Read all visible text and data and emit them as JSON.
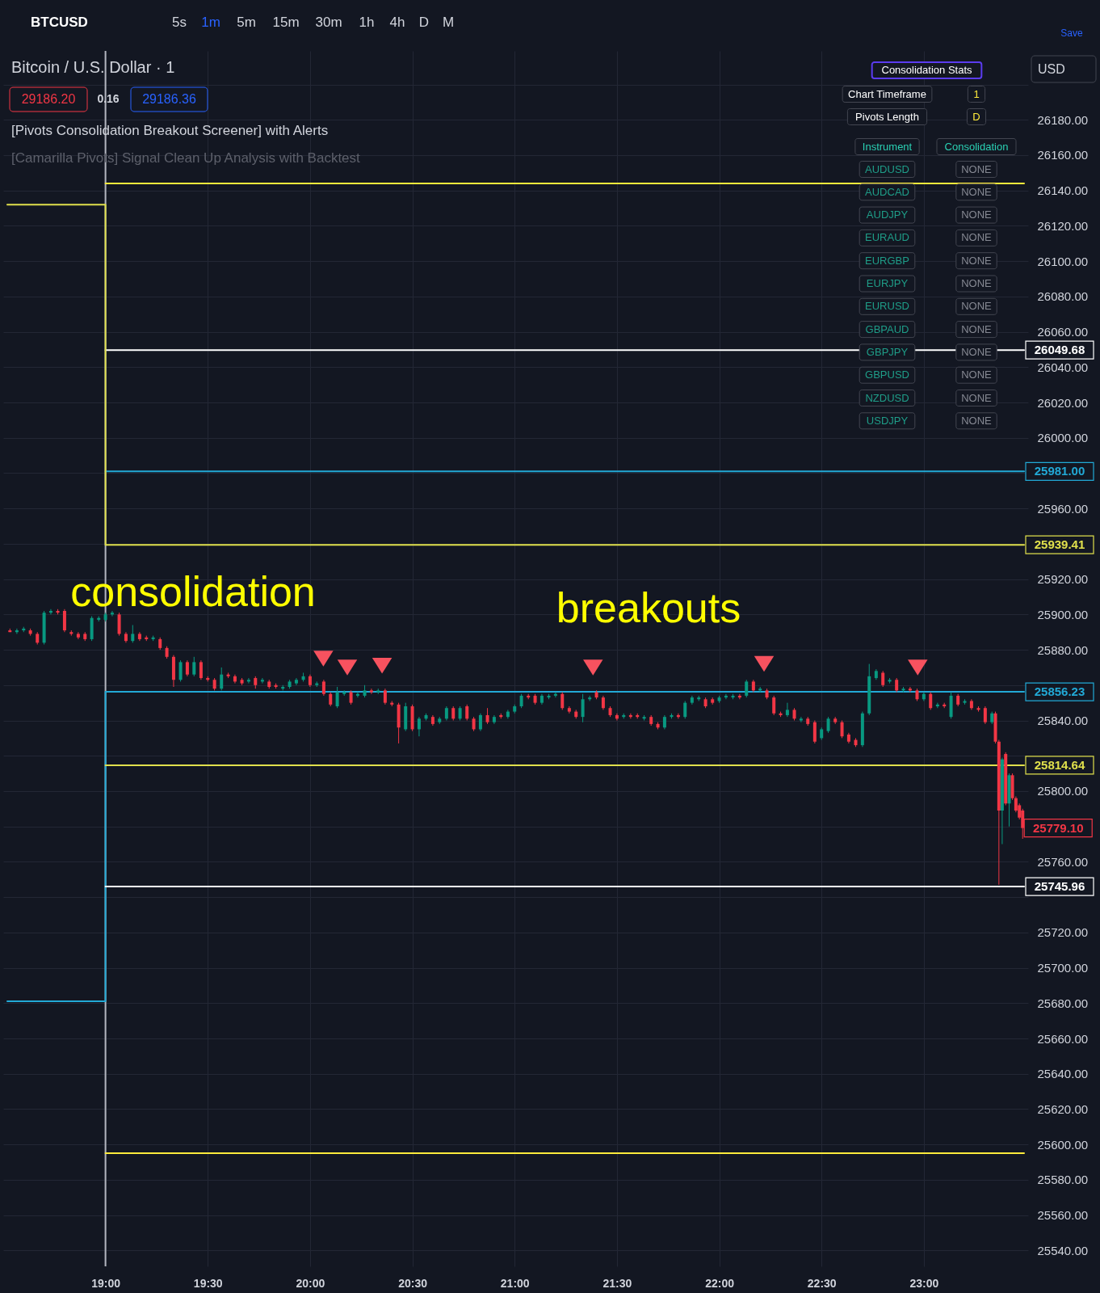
{
  "chart_data": {
    "type": "candlestick",
    "title": "Bitcoin / U.S. Dollar · 1",
    "x": [
      18.533,
      18.567,
      18.6,
      18.633,
      18.667,
      18.7,
      18.733,
      18.767,
      18.8,
      18.833,
      18.867,
      18.9,
      18.933,
      18.967,
      19,
      19.033,
      19.067,
      19.1,
      19.133,
      19.167,
      19.2,
      19.233,
      19.267,
      19.3,
      19.333,
      19.367,
      19.4,
      19.433,
      19.467,
      19.5,
      19.533,
      19.567,
      19.6,
      19.633,
      19.667,
      19.7,
      19.733,
      19.767,
      19.8,
      19.833,
      19.867,
      19.9,
      19.933,
      19.967,
      20,
      20.033,
      20.067,
      20.1,
      20.133,
      20.167,
      20.2,
      20.233,
      20.267,
      20.3,
      20.333,
      20.367,
      20.4,
      20.433,
      20.467,
      20.5,
      20.533,
      20.567,
      20.6,
      20.633,
      20.667,
      20.7,
      20.733,
      20.767,
      20.8,
      20.833,
      20.867,
      20.9,
      20.933,
      20.967,
      21,
      21.033,
      21.067,
      21.1,
      21.133,
      21.167,
      21.2,
      21.233,
      21.267,
      21.3,
      21.333,
      21.367,
      21.4,
      21.433,
      21.467,
      21.5,
      21.533,
      21.567,
      21.6,
      21.633,
      21.667,
      21.7,
      21.733,
      21.767,
      21.8,
      21.833,
      21.867,
      21.9,
      21.933,
      21.967,
      22,
      22.033,
      22.067,
      22.1,
      22.133,
      22.167,
      22.2,
      22.233,
      22.267,
      22.3,
      22.333,
      22.367,
      22.4,
      22.433,
      22.467,
      22.5,
      22.533,
      22.567,
      22.6,
      22.633,
      22.667,
      22.7,
      22.733,
      22.767,
      22.8,
      22.833,
      22.867,
      22.9,
      22.933,
      22.967,
      23,
      23.033,
      23.067,
      23.1,
      23.133,
      23.167,
      23.2,
      23.233,
      23.267,
      23.3,
      23.333,
      23.35,
      23.367,
      23.383,
      23.4,
      23.417,
      23.433,
      23.45,
      23.467,
      23.483
    ],
    "ohlc": [
      [
        25891,
        25892,
        25890,
        25890
      ],
      [
        25890,
        25892,
        25889,
        25891
      ],
      [
        25891,
        25893,
        25890,
        25892
      ],
      [
        25891,
        25892,
        25888,
        25889
      ],
      [
        25889,
        25890,
        25883,
        25884
      ],
      [
        25884,
        25902,
        25883,
        25901
      ],
      [
        25901,
        25903,
        25900,
        25902
      ],
      [
        25902,
        25903,
        25900,
        25901
      ],
      [
        25902,
        25903,
        25890,
        25891
      ],
      [
        25890,
        25891,
        25888,
        25889
      ],
      [
        25889,
        25890,
        25886,
        25887
      ],
      [
        25889,
        25890,
        25885,
        25886
      ],
      [
        25886,
        25899,
        25885,
        25898
      ],
      [
        25897,
        25899,
        25896,
        25898
      ],
      [
        25897,
        25901,
        25896,
        25900
      ],
      [
        25900,
        25902,
        25899,
        25901
      ],
      [
        25900,
        25901,
        25888,
        25889
      ],
      [
        25889,
        25890,
        25884,
        25885
      ],
      [
        25885,
        25894,
        25884,
        25889
      ],
      [
        25889,
        25890,
        25885,
        25886
      ],
      [
        25887,
        25888,
        25885,
        25886
      ],
      [
        25886,
        25888,
        25885,
        25887
      ],
      [
        25886,
        25887,
        25880,
        25881
      ],
      [
        25881,
        25882,
        25875,
        25876
      ],
      [
        25876,
        25877,
        25859,
        25863
      ],
      [
        25863,
        25874,
        25862,
        25873
      ],
      [
        25873,
        25874,
        25865,
        25866
      ],
      [
        25866,
        25876,
        25865,
        25873
      ],
      [
        25873,
        25874,
        25863,
        25864
      ],
      [
        25864,
        25865,
        25862,
        25863
      ],
      [
        25863,
        25864,
        25857,
        25858
      ],
      [
        25858,
        25870,
        25857,
        25866
      ],
      [
        25866,
        25867,
        25864,
        25865
      ],
      [
        25865,
        25866,
        25861,
        25862
      ],
      [
        25863,
        25864,
        25860,
        25861
      ],
      [
        25862,
        25864,
        25861,
        25863
      ],
      [
        25864,
        25865,
        25858,
        25860
      ],
      [
        25862,
        25864,
        25861,
        25863
      ],
      [
        25862,
        25863,
        25858,
        25859
      ],
      [
        25860,
        25861,
        25858,
        25859
      ],
      [
        25858,
        25860,
        25857,
        25859
      ],
      [
        25859,
        25863,
        25858,
        25862
      ],
      [
        25861,
        25864,
        25860,
        25863
      ],
      [
        25863,
        25867,
        25862,
        25865
      ],
      [
        25865,
        25866,
        25859,
        25860
      ],
      [
        25860,
        25862,
        25859,
        25861
      ],
      [
        25862,
        25863,
        25854,
        25855
      ],
      [
        25855,
        25856,
        25848,
        25849
      ],
      [
        25848,
        25859,
        25847,
        25856
      ],
      [
        25855,
        25857,
        25854,
        25856
      ],
      [
        25856,
        25857,
        25849,
        25850
      ],
      [
        25854,
        25856,
        25853,
        25855
      ],
      [
        25854,
        25860,
        25853,
        25857
      ],
      [
        25857,
        25858,
        25855,
        25856
      ],
      [
        25856,
        25858,
        25855,
        25857
      ],
      [
        25857,
        25858,
        25849,
        25850
      ],
      [
        25850,
        25851,
        25848,
        25849
      ],
      [
        25849,
        25850,
        25827,
        25836
      ],
      [
        25835,
        25850,
        25834,
        25848
      ],
      [
        25848,
        25849,
        25834,
        25835
      ],
      [
        25835,
        25842,
        25831,
        25841
      ],
      [
        25841,
        25844,
        25840,
        25843
      ],
      [
        25842,
        25843,
        25837,
        25838
      ],
      [
        25839,
        25842,
        25838,
        25841
      ],
      [
        25841,
        25848,
        25840,
        25847
      ],
      [
        25847,
        25848,
        25840,
        25841
      ],
      [
        25841,
        25848,
        25840,
        25847
      ],
      [
        25848,
        25849,
        25840,
        25841
      ],
      [
        25841,
        25842,
        25834,
        25835
      ],
      [
        25835,
        25844,
        25834,
        25843
      ],
      [
        25843,
        25847,
        25838,
        25839
      ],
      [
        25839,
        25843,
        25838,
        25842
      ],
      [
        25843,
        25844,
        25841,
        25842
      ],
      [
        25842,
        25846,
        25841,
        25845
      ],
      [
        25845,
        25849,
        25844,
        25848
      ],
      [
        25848,
        25855,
        25847,
        25854
      ],
      [
        25854,
        25855,
        25852,
        25853
      ],
      [
        25854,
        25855,
        25849,
        25850
      ],
      [
        25850,
        25855,
        25849,
        25854
      ],
      [
        25853,
        25855,
        25852,
        25854
      ],
      [
        25854,
        25856,
        25853,
        25855
      ],
      [
        25855,
        25856,
        25846,
        25847
      ],
      [
        25847,
        25848,
        25844,
        25845
      ],
      [
        25845,
        25846,
        25841,
        25842
      ],
      [
        25842,
        25855,
        25839,
        25852
      ],
      [
        25852,
        25854,
        25851,
        25853
      ],
      [
        25856,
        25857,
        25852,
        25853
      ],
      [
        25853,
        25854,
        25846,
        25847
      ],
      [
        25847,
        25848,
        25842,
        25843
      ],
      [
        25843,
        25844,
        25840,
        25841
      ],
      [
        25842,
        25844,
        25841,
        25843
      ],
      [
        25843,
        25844,
        25841,
        25842
      ],
      [
        25843,
        25844,
        25841,
        25842
      ],
      [
        25841,
        25843,
        25840,
        25842
      ],
      [
        25842,
        25843,
        25837,
        25838
      ],
      [
        25838,
        25839,
        25835,
        25836
      ],
      [
        25836,
        25843,
        25835,
        25842
      ],
      [
        25842,
        25844,
        25841,
        25843
      ],
      [
        25843,
        25844,
        25841,
        25842
      ],
      [
        25842,
        25851,
        25841,
        25850
      ],
      [
        25850,
        25854,
        25849,
        25853
      ],
      [
        25852,
        25854,
        25851,
        25853
      ],
      [
        25852,
        25853,
        25847,
        25848
      ],
      [
        25852,
        25853,
        25849,
        25850
      ],
      [
        25851,
        25854,
        25850,
        25853
      ],
      [
        25853,
        25855,
        25852,
        25854
      ],
      [
        25853,
        25855,
        25852,
        25854
      ],
      [
        25854,
        25855,
        25852,
        25853
      ],
      [
        25854,
        25863,
        25853,
        25862
      ],
      [
        25862,
        25863,
        25856,
        25857
      ],
      [
        25857,
        25859,
        25856,
        25858
      ],
      [
        25857,
        25858,
        25852,
        25853
      ],
      [
        25853,
        25854,
        25843,
        25844
      ],
      [
        25844,
        25845,
        25842,
        25843
      ],
      [
        25843,
        25850,
        25842,
        25846
      ],
      [
        25846,
        25847,
        25840,
        25841
      ],
      [
        25840,
        25842,
        25839,
        25841
      ],
      [
        25841,
        25842,
        25837,
        25838
      ],
      [
        25839,
        25840,
        25827,
        25828
      ],
      [
        25830,
        25836,
        25829,
        25835
      ],
      [
        25834,
        25842,
        25833,
        25841
      ],
      [
        25841,
        25842,
        25838,
        25839
      ],
      [
        25839,
        25840,
        25830,
        25831
      ],
      [
        25832,
        25833,
        25827,
        25828
      ],
      [
        25829,
        25830,
        25825,
        25826
      ],
      [
        25826,
        25845,
        25825,
        25844
      ],
      [
        25844,
        25872,
        25843,
        25865
      ],
      [
        25864,
        25869,
        25863,
        25868
      ],
      [
        25867,
        25868,
        25859,
        25860
      ],
      [
        25862,
        25864,
        25861,
        25863
      ],
      [
        25863,
        25864,
        25856,
        25857
      ],
      [
        25857,
        25859,
        25856,
        25858
      ],
      [
        25858,
        25859,
        25856,
        25857
      ],
      [
        25857,
        25858,
        25851,
        25852
      ],
      [
        25852,
        25856,
        25851,
        25855
      ],
      [
        25855,
        25856,
        25846,
        25847
      ],
      [
        25848,
        25850,
        25847,
        25849
      ],
      [
        25849,
        25850,
        25847,
        25848
      ],
      [
        25842,
        25856,
        25841,
        25854
      ],
      [
        25854,
        25855,
        25848,
        25849
      ],
      [
        25850,
        25852,
        25849,
        25851
      ],
      [
        25851,
        25852,
        25846,
        25847
      ],
      [
        25847,
        25848,
        25845,
        25846
      ],
      [
        25847,
        25848,
        25838,
        25839
      ],
      [
        25839,
        25845,
        25838,
        25844
      ],
      [
        25844,
        25845,
        25827,
        25828
      ],
      [
        25828,
        25829,
        25747,
        25789
      ],
      [
        25789,
        25819,
        25770,
        25818
      ],
      [
        25821,
        25822,
        25792,
        25793
      ],
      [
        25793,
        25810,
        25780,
        25809
      ],
      [
        25809,
        25810,
        25795,
        25796
      ],
      [
        25796,
        25797,
        25788,
        25789
      ],
      [
        25792,
        25793,
        25784,
        25785
      ],
      [
        25789,
        25790,
        25773,
        25779.1
      ]
    ],
    "colors": [
      "#f23645",
      "#089981",
      "#089981",
      "#f23645",
      "#f23645",
      "#089981",
      "#089981",
      "#f23645",
      "#f23645",
      "#f23645",
      "#f23645",
      "#f23645",
      "#089981",
      "#089981",
      "#089981",
      "#089981",
      "#f23645",
      "#f23645",
      "#089981",
      "#f23645",
      "#f23645",
      "#089981",
      "#f23645",
      "#f23645",
      "#f23645",
      "#089981",
      "#f23645",
      "#089981",
      "#f23645",
      "#f23645",
      "#f23645",
      "#089981",
      "#f23645",
      "#f23645",
      "#f23645",
      "#089981",
      "#f23645",
      "#089981",
      "#f23645",
      "#f23645",
      "#089981",
      "#089981",
      "#089981",
      "#089981",
      "#f23645",
      "#089981",
      "#f23645",
      "#f23645",
      "#089981",
      "#089981",
      "#f23645",
      "#089981",
      "#089981",
      "#f23645",
      "#089981",
      "#f23645",
      "#f23645",
      "#f23645",
      "#089981",
      "#f23645",
      "#089981",
      "#089981",
      "#f23645",
      "#089981",
      "#089981",
      "#f23645",
      "#089981",
      "#f23645",
      "#f23645",
      "#089981",
      "#f23645",
      "#089981",
      "#f23645",
      "#089981",
      "#089981",
      "#089981",
      "#f23645",
      "#f23645",
      "#089981",
      "#089981",
      "#089981",
      "#f23645",
      "#f23645",
      "#f23645",
      "#089981",
      "#089981",
      "#f23645",
      "#f23645",
      "#f23645",
      "#f23645",
      "#089981",
      "#f23645",
      "#f23645",
      "#089981",
      "#f23645",
      "#f23645",
      "#089981",
      "#089981",
      "#f23645",
      "#089981",
      "#089981",
      "#089981",
      "#f23645",
      "#f23645",
      "#089981",
      "#089981",
      "#089981",
      "#f23645",
      "#089981",
      "#f23645",
      "#089981",
      "#f23645",
      "#f23645",
      "#f23645",
      "#089981",
      "#f23645",
      "#089981",
      "#f23645",
      "#f23645",
      "#089981",
      "#089981",
      "#f23645",
      "#f23645",
      "#f23645",
      "#f23645",
      "#089981",
      "#089981",
      "#089981",
      "#f23645",
      "#089981",
      "#f23645",
      "#089981",
      "#f23645",
      "#f23645",
      "#089981",
      "#f23645",
      "#089981",
      "#f23645",
      "#089981",
      "#f23645",
      "#089981",
      "#f23645",
      "#f23645",
      "#f23645",
      "#089981",
      "#f23645",
      "#f23645",
      "#089981",
      "#f23645",
      "#089981",
      "#f23645",
      "#f23645",
      "#f23645",
      "#f23645"
    ],
    "value_labels": [
      null,
      null,
      null,
      null,
      null,
      null,
      null,
      null,
      null,
      null,
      null,
      null,
      null,
      null,
      null,
      null,
      null,
      null,
      null,
      null,
      null,
      null,
      null,
      null,
      null,
      null,
      null,
      null,
      null,
      null,
      null,
      null,
      null,
      null,
      null,
      null,
      null,
      null,
      null,
      null,
      null,
      null,
      null,
      null,
      null,
      null,
      null,
      null,
      null,
      null,
      null,
      null,
      null,
      null,
      null,
      null,
      null,
      null,
      null,
      null,
      null,
      null,
      null,
      null,
      null,
      null,
      null,
      null,
      null,
      null,
      null,
      null,
      null,
      null,
      null,
      null,
      null,
      null,
      null,
      null,
      null,
      null,
      null,
      null,
      null,
      null,
      null,
      null,
      null,
      null,
      null,
      null,
      null,
      null,
      null,
      null,
      null,
      null,
      null,
      null,
      null,
      null,
      null,
      null,
      null,
      null,
      null,
      null,
      null,
      null,
      null,
      null,
      null,
      null,
      null,
      null,
      null,
      null,
      null,
      null,
      null,
      null,
      null,
      null,
      null,
      null,
      null,
      null,
      null,
      null,
      null,
      null,
      null,
      null,
      null,
      null,
      null,
      null,
      null,
      null,
      null,
      null,
      null,
      null,
      null,
      null,
      null,
      null,
      null,
      null,
      null,
      null,
      null,
      "25779.10"
    ],
    "series": [
      {
        "type": "step",
        "color": "#ffeb3b",
        "x": [
          19,
          23.49
        ],
        "values": [
          26144,
          26144
        ]
      },
      {
        "type": "step",
        "color": "#ffffff",
        "x": [
          19,
          23.49
        ],
        "values": [
          26049.68,
          26049.68
        ],
        "value_labels": [
          null,
          "26049.68"
        ]
      },
      {
        "type": "step",
        "color": "#22a9d6",
        "x": [
          19,
          23.49
        ],
        "values": [
          25981.0,
          25981.0
        ],
        "value_labels": [
          null,
          "25981.00"
        ]
      },
      {
        "type": "step",
        "color": "#e0e04c",
        "x": [
          18.52,
          19,
          23.49
        ],
        "values": [
          26132,
          25939.41,
          25939.41
        ],
        "value_labels": [
          null,
          null,
          "25939.41"
        ]
      },
      {
        "type": "step",
        "color": "#22a9d6",
        "x": [
          18.52,
          19,
          23.49
        ],
        "values": [
          25681,
          25856.23,
          25856.23
        ],
        "value_labels": [
          null,
          null,
          "25856.23"
        ]
      },
      {
        "type": "step",
        "color": "#e0e04c",
        "x": [
          19,
          23.49
        ],
        "values": [
          25814.64,
          25814.64
        ],
        "value_labels": [
          null,
          "25814.64"
        ]
      },
      {
        "type": "step",
        "color": "#ffffff",
        "x": [
          19,
          23.49
        ],
        "values": [
          25745.96,
          25745.96
        ],
        "value_labels": [
          null,
          "25745.96"
        ]
      },
      {
        "type": "step",
        "color": "#ffeb3b",
        "x": [
          19,
          23.49
        ],
        "values": [
          25595,
          25595
        ]
      },
      {
        "type": "scatter",
        "color": "#f7525f",
        "marker": "triangle",
        "x": [
          20.065,
          20.182,
          20.352,
          21.383,
          22.219,
          22.97
        ],
        "values": [
          25875,
          25870,
          25871,
          25870,
          25872,
          25870
        ]
      }
    ],
    "xlim": [
      18.52,
      23.49
    ],
    "ylim": [
      25531,
      26219
    ],
    "xticks": [
      {
        "value": 19,
        "label": "19:00"
      },
      {
        "value": 19.5,
        "label": "19:30"
      },
      {
        "value": 20,
        "label": "20:00"
      },
      {
        "value": 20.5,
        "label": "20:30"
      },
      {
        "value": 21,
        "label": "21:00"
      },
      {
        "value": 21.5,
        "label": "21:30"
      },
      {
        "value": 22,
        "label": "22:00"
      },
      {
        "value": 22.5,
        "label": "22:30"
      },
      {
        "value": 23,
        "label": "23:00"
      }
    ],
    "yticks": [
      {
        "value": 25540,
        "label": "25540.00"
      },
      {
        "value": 25560,
        "label": "25560.00"
      },
      {
        "value": 25580,
        "label": "25580.00"
      },
      {
        "value": 25600,
        "label": "25600.00"
      },
      {
        "value": 25620,
        "label": "25620.00"
      },
      {
        "value": 25640,
        "label": "25640.00"
      },
      {
        "value": 25660,
        "label": "25660.00"
      },
      {
        "value": 25680,
        "label": "25680.00"
      },
      {
        "value": 25700,
        "label": "25700.00"
      },
      {
        "value": 25720,
        "label": "25720.00"
      },
      {
        "value": 25740,
        "label": null
      },
      {
        "value": 25760,
        "label": "25760.00"
      },
      {
        "value": 25780,
        "label": null
      },
      {
        "value": 25800,
        "label": "25800.00"
      },
      {
        "value": 25820,
        "label": null
      },
      {
        "value": 25840,
        "label": "25840.00"
      },
      {
        "value": 25860,
        "label": null
      },
      {
        "value": 25880,
        "label": "25880.00"
      },
      {
        "value": 25900,
        "label": "25900.00"
      },
      {
        "value": 25920,
        "label": "25920.00"
      },
      {
        "value": 25940,
        "label": null
      },
      {
        "value": 25960,
        "label": "25960.00"
      },
      {
        "value": 25980,
        "label": null
      },
      {
        "value": 26000,
        "label": "26000.00"
      },
      {
        "value": 26020,
        "label": "26020.00"
      },
      {
        "value": 26040,
        "label": "26040.00"
      },
      {
        "value": 26060,
        "label": "26060.00"
      },
      {
        "value": 26080,
        "label": "26080.00"
      },
      {
        "value": 26100,
        "label": "26100.00"
      },
      {
        "value": 26120,
        "label": "26120.00"
      },
      {
        "value": 26140,
        "label": "26140.00"
      },
      {
        "value": 26160,
        "label": "26160.00"
      },
      {
        "value": 26180,
        "label": "26180.00"
      },
      {
        "value": 26200,
        "label": null
      }
    ],
    "grid": true,
    "ref_lines": [
      {
        "axis": "x",
        "value": 19,
        "color": "#b2b5be"
      }
    ],
    "annotations": [
      "BTCUSD",
      "5s",
      "1m",
      "5m",
      "15m",
      "30m",
      "1h",
      "4h",
      "D",
      "M",
      "Save",
      "USD",
      "29186.20",
      "0.16",
      "29186.36",
      "[Pivots Consolidation Breakout Screener] with Alerts",
      "[Camarilla Pivots] Signal Clean Up Analysis with Backtest",
      "Consolidation Stats",
      "Chart Timeframe",
      "1",
      "Pivots Length",
      "D",
      "Instrument",
      "Consolidation",
      "AUDUSD",
      "NONE",
      "AUDCAD",
      "NONE",
      "AUDJPY",
      "NONE",
      "EURAUD",
      "NONE",
      "EURGBP",
      "NONE",
      "EURJPY",
      "NONE",
      "EURUSD",
      "NONE",
      "GBPAUD",
      "NONE",
      "GBPJPY",
      "NONE",
      "GBPUSD",
      "NONE",
      "NZDUSD",
      "NONE",
      "USDJPY",
      "NONE",
      "consolidation",
      "breakouts"
    ]
  }
}
